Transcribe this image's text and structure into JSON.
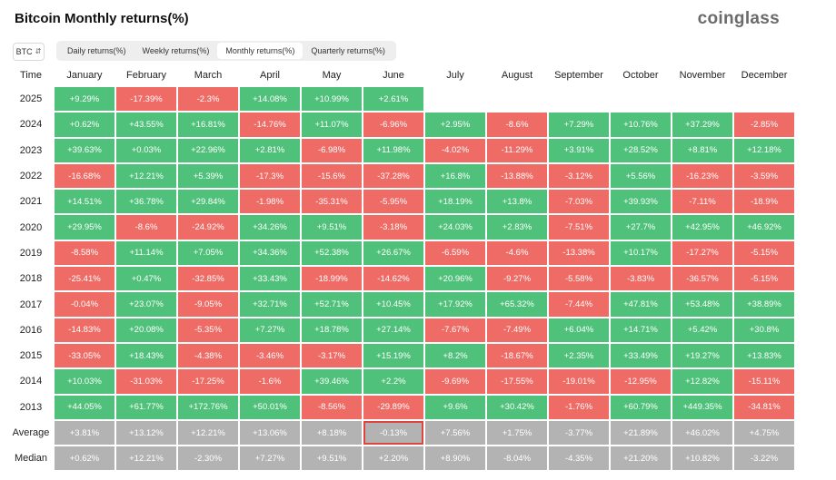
{
  "header": {
    "title": "Bitcoin Monthly returns(%)",
    "brand": "coinglass"
  },
  "controls": {
    "coin": "BTC",
    "tabs": [
      "Daily returns(%)",
      "Weekly returns(%)",
      "Monthly returns(%)",
      "Quarterly returns(%)"
    ],
    "active_tab": "Monthly returns(%)"
  },
  "colors": {
    "positive": "#4fc17a",
    "negative": "#ef6b66",
    "summary": "#b3b3b3",
    "highlight": "#e0443c"
  },
  "table": {
    "first_header": "Time",
    "months": [
      "January",
      "February",
      "March",
      "April",
      "May",
      "June",
      "July",
      "August",
      "September",
      "October",
      "November",
      "December"
    ],
    "rows": [
      {
        "year": "2025",
        "values": [
          "+9.29%",
          "-17.39%",
          "-2.3%",
          "+14.08%",
          "+10.99%",
          "+2.61%",
          "",
          "",
          "",
          "",
          "",
          ""
        ]
      },
      {
        "year": "2024",
        "values": [
          "+0.62%",
          "+43.55%",
          "+16.81%",
          "-14.76%",
          "+11.07%",
          "-6.96%",
          "+2.95%",
          "-8.6%",
          "+7.29%",
          "+10.76%",
          "+37.29%",
          "-2.85%"
        ]
      },
      {
        "year": "2023",
        "values": [
          "+39.63%",
          "+0.03%",
          "+22.96%",
          "+2.81%",
          "-6.98%",
          "+11.98%",
          "-4.02%",
          "-11.29%",
          "+3.91%",
          "+28.52%",
          "+8.81%",
          "+12.18%"
        ]
      },
      {
        "year": "2022",
        "values": [
          "-16.68%",
          "+12.21%",
          "+5.39%",
          "-17.3%",
          "-15.6%",
          "-37.28%",
          "+16.8%",
          "-13.88%",
          "-3.12%",
          "+5.56%",
          "-16.23%",
          "-3.59%"
        ]
      },
      {
        "year": "2021",
        "values": [
          "+14.51%",
          "+36.78%",
          "+29.84%",
          "-1.98%",
          "-35.31%",
          "-5.95%",
          "+18.19%",
          "+13.8%",
          "-7.03%",
          "+39.93%",
          "-7.11%",
          "-18.9%"
        ]
      },
      {
        "year": "2020",
        "values": [
          "+29.95%",
          "-8.6%",
          "-24.92%",
          "+34.26%",
          "+9.51%",
          "-3.18%",
          "+24.03%",
          "+2.83%",
          "-7.51%",
          "+27.7%",
          "+42.95%",
          "+46.92%"
        ]
      },
      {
        "year": "2019",
        "values": [
          "-8.58%",
          "+11.14%",
          "+7.05%",
          "+34.36%",
          "+52.38%",
          "+26.67%",
          "-6.59%",
          "-4.6%",
          "-13.38%",
          "+10.17%",
          "-17.27%",
          "-5.15%"
        ]
      },
      {
        "year": "2018",
        "values": [
          "-25.41%",
          "+0.47%",
          "-32.85%",
          "+33.43%",
          "-18.99%",
          "-14.62%",
          "+20.96%",
          "-9.27%",
          "-5.58%",
          "-3.83%",
          "-36.57%",
          "-5.15%"
        ]
      },
      {
        "year": "2017",
        "values": [
          "-0.04%",
          "+23.07%",
          "-9.05%",
          "+32.71%",
          "+52.71%",
          "+10.45%",
          "+17.92%",
          "+65.32%",
          "-7.44%",
          "+47.81%",
          "+53.48%",
          "+38.89%"
        ]
      },
      {
        "year": "2016",
        "values": [
          "-14.83%",
          "+20.08%",
          "-5.35%",
          "+7.27%",
          "+18.78%",
          "+27.14%",
          "-7.67%",
          "-7.49%",
          "+6.04%",
          "+14.71%",
          "+5.42%",
          "+30.8%"
        ]
      },
      {
        "year": "2015",
        "values": [
          "-33.05%",
          "+18.43%",
          "-4.38%",
          "-3.46%",
          "-3.17%",
          "+15.19%",
          "+8.2%",
          "-18.67%",
          "+2.35%",
          "+33.49%",
          "+19.27%",
          "+13.83%"
        ]
      },
      {
        "year": "2014",
        "values": [
          "+10.03%",
          "-31.03%",
          "-17.25%",
          "-1.6%",
          "+39.46%",
          "+2.2%",
          "-9.69%",
          "-17.55%",
          "-19.01%",
          "-12.95%",
          "+12.82%",
          "-15.11%"
        ]
      },
      {
        "year": "2013",
        "values": [
          "+44.05%",
          "+61.77%",
          "+172.76%",
          "+50.01%",
          "-8.56%",
          "-29.89%",
          "+9.6%",
          "+30.42%",
          "-1.76%",
          "+60.79%",
          "+449.35%",
          "-34.81%"
        ]
      }
    ],
    "summary_rows": [
      {
        "label": "Average",
        "values": [
          "+3.81%",
          "+13.12%",
          "+12.21%",
          "+13.06%",
          "+8.18%",
          "-0.13%",
          "+7.56%",
          "+1.75%",
          "-3.77%",
          "+21.89%",
          "+46.02%",
          "+4.75%"
        ]
      },
      {
        "label": "Median",
        "values": [
          "+0.62%",
          "+12.21%",
          "-2.30%",
          "+7.27%",
          "+9.51%",
          "+2.20%",
          "+8.90%",
          "-8.04%",
          "-4.35%",
          "+21.20%",
          "+10.82%",
          "-3.22%"
        ]
      }
    ],
    "highlighted_cell": {
      "row": "Average",
      "month": "June"
    }
  }
}
